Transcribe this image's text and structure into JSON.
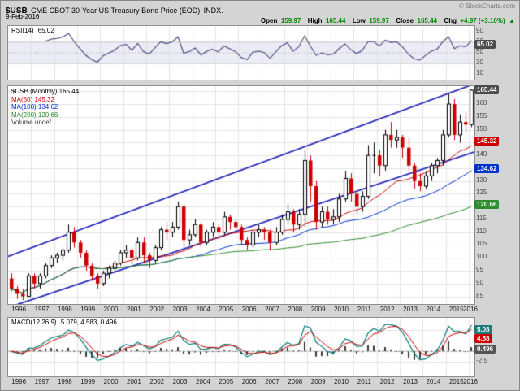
{
  "header": {
    "symbol": "$USB",
    "title": "CME CBOT 30-Year US Treasury Bond Price (EOD)",
    "exchange": "INDX.",
    "date": "9-Feb-2016",
    "copyright": "© StockCharts.com",
    "quote": {
      "open_label": "Open",
      "open": "159.97",
      "high_label": "High",
      "high": "165.44",
      "low_label": "Low",
      "low": "159.97",
      "close_label": "Close",
      "close": "165.44",
      "chg_label": "Chg",
      "chg": "+4.97 (+3.10%)",
      "arrow": "▲"
    }
  },
  "rsi_panel": {
    "name": "RSI(14)",
    "value": "65.02",
    "line_color": "#44447e",
    "band_color": "#ececf6",
    "axis_ticks": [
      90,
      70,
      50,
      30,
      10
    ],
    "value_box": {
      "text": "65.02",
      "bg": "#4d4d4d",
      "value": 65.02
    },
    "range": [
      0,
      100
    ],
    "band": [
      30,
      70
    ],
    "period_quarters": 6
  },
  "main_panel": {
    "legend": [
      {
        "text": "$USB (Monthly) 165.44",
        "color": "#000000"
      },
      {
        "text": "MA(50) 145.32",
        "color": "#cc0000"
      },
      {
        "text": "MA(100) 134.62",
        "color": "#0033cc"
      },
      {
        "text": "MA(200) 120.66",
        "color": "#2e8b2e"
      },
      {
        "text": "Volume undef",
        "color": "#444444"
      }
    ],
    "axis_ticks": [
      165,
      160,
      155,
      150,
      145,
      140,
      135,
      130,
      125,
      120,
      115,
      110,
      105,
      100,
      95,
      90,
      85
    ],
    "value_boxes": [
      {
        "text": "165.44",
        "bg": "#4d4d4d",
        "value": 165.44
      },
      {
        "text": "145.32",
        "bg": "#cc0000",
        "value": 145.32
      },
      {
        "text": "134.62",
        "bg": "#0033cc",
        "value": 134.62
      },
      {
        "text": "120.66",
        "bg": "#2e8b2e",
        "value": 120.66
      }
    ],
    "channel_color": "#2929b8",
    "up_color": "#000000",
    "down_color": "#cc0000"
  },
  "macd_panel": {
    "name": "MACD(12,26,9)",
    "values": "5.079, 4.583, 0.496",
    "axis_ticks": [
      5.0,
      2.5,
      0.0,
      -2.5
    ],
    "value_boxes": [
      {
        "text": "5.08",
        "bg": "#1f7a7a",
        "value": 5.08
      },
      {
        "text": "4.58",
        "bg": "#cc0000",
        "value": 4.58
      },
      {
        "text": "0.496",
        "bg": "#555555",
        "value": 0.496
      }
    ],
    "macd_color": "#007a7a",
    "signal_color": "#cc0000",
    "hist_color": "#3a3a3a"
  },
  "x_axis": {
    "years": [
      "1996",
      "1997",
      "1998",
      "1999",
      "2000",
      "2001",
      "2002",
      "2003",
      "2004",
      "2005",
      "2006",
      "2007",
      "2008",
      "2009",
      "2010",
      "2011",
      "2012",
      "2013",
      "2014",
      "2015",
      "2016"
    ]
  },
  "chart_data": {
    "type": "candlestick",
    "symbol": "$USB",
    "title": "CME CBOT 30-Year US Treasury Bond Price (EOD)",
    "timeframe": "monthly 1996–Feb 2016 (approximated at quarterly resolution)",
    "x_start": "1996-Q1",
    "x_end": "2016-Q1",
    "price_range": [
      82,
      167
    ],
    "ohlc": [
      [
        92,
        94,
        87,
        88
      ],
      [
        88,
        89,
        84,
        86
      ],
      [
        86,
        88,
        83.5,
        85
      ],
      [
        85,
        94,
        85,
        93
      ],
      [
        93,
        94,
        88,
        90
      ],
      [
        90,
        94,
        88,
        93
      ],
      [
        93,
        98,
        92,
        97
      ],
      [
        97,
        101,
        96,
        100
      ],
      [
        100,
        102,
        98,
        101
      ],
      [
        101,
        104,
        99,
        103
      ],
      [
        103,
        113,
        102,
        110
      ],
      [
        110,
        112,
        104,
        106
      ],
      [
        106,
        107,
        100,
        102
      ],
      [
        102,
        103,
        95,
        97
      ],
      [
        97,
        98,
        91,
        93
      ],
      [
        93,
        94,
        88,
        90
      ],
      [
        90,
        95,
        89,
        94
      ],
      [
        94,
        97,
        92,
        96
      ],
      [
        96,
        99,
        94,
        98
      ],
      [
        98,
        103,
        97,
        102
      ],
      [
        102,
        105,
        100,
        103
      ],
      [
        103,
        104,
        97,
        100
      ],
      [
        100,
        108,
        99,
        106
      ],
      [
        106,
        108,
        98,
        101
      ],
      [
        101,
        102,
        96,
        99
      ],
      [
        99,
        105,
        98,
        104
      ],
      [
        104,
        112,
        103,
        111
      ],
      [
        111,
        114,
        107,
        110
      ],
      [
        110,
        114,
        108,
        112
      ],
      [
        112,
        122,
        111,
        120
      ],
      [
        120,
        121,
        104,
        107
      ],
      [
        107,
        111,
        105,
        109
      ],
      [
        109,
        115,
        108,
        113
      ],
      [
        113,
        114,
        104,
        106
      ],
      [
        106,
        111,
        105,
        110
      ],
      [
        110,
        114,
        108,
        112
      ],
      [
        112,
        113,
        107,
        110
      ],
      [
        110,
        118,
        109,
        116
      ],
      [
        116,
        117,
        111,
        114
      ],
      [
        114,
        115,
        110,
        112
      ],
      [
        112,
        113,
        105,
        107
      ],
      [
        107,
        108,
        103,
        105
      ],
      [
        105,
        111,
        104,
        110
      ],
      [
        110,
        113,
        108,
        111
      ],
      [
        111,
        112,
        107,
        110
      ],
      [
        110,
        111,
        103,
        106
      ],
      [
        106,
        112,
        105,
        110
      ],
      [
        110,
        117,
        109,
        115
      ],
      [
        115,
        121,
        113,
        118
      ],
      [
        118,
        119,
        110,
        113
      ],
      [
        113,
        119,
        111,
        117
      ],
      [
        117,
        142,
        112,
        138
      ],
      [
        138,
        140,
        122,
        128
      ],
      [
        128,
        130,
        111,
        114
      ],
      [
        114,
        120,
        112,
        118
      ],
      [
        118,
        120,
        113,
        115
      ],
      [
        115,
        119,
        113,
        116
      ],
      [
        116,
        125,
        114,
        123
      ],
      [
        123,
        134,
        122,
        131
      ],
      [
        131,
        133,
        122,
        125
      ],
      [
        125,
        126,
        117,
        120
      ],
      [
        120,
        126,
        118,
        124
      ],
      [
        124,
        144,
        123,
        140
      ],
      [
        140,
        145,
        133,
        140
      ],
      [
        140,
        142,
        132,
        136
      ],
      [
        136,
        150,
        134,
        148
      ],
      [
        148,
        153,
        143,
        146
      ],
      [
        146,
        150,
        143,
        147
      ],
      [
        147,
        148,
        139,
        143
      ],
      [
        143,
        147,
        134,
        136
      ],
      [
        136,
        137,
        127,
        130
      ],
      [
        130,
        133,
        126,
        128
      ],
      [
        128,
        134,
        127,
        132
      ],
      [
        132,
        137,
        130,
        136
      ],
      [
        136,
        139,
        133,
        138
      ],
      [
        138,
        150,
        136,
        148
      ],
      [
        148,
        164,
        147,
        160
      ],
      [
        160,
        162,
        146,
        148
      ],
      [
        148,
        156,
        145,
        153
      ],
      [
        153,
        157,
        149,
        152
      ],
      [
        152,
        165.8,
        151,
        165.44
      ]
    ],
    "mas": [
      {
        "label": "MA(50)",
        "window_q": 17,
        "color": "#cc0000",
        "last": 145.32
      },
      {
        "label": "MA(100)",
        "window_q": 33,
        "color": "#0033cc",
        "last": 134.62
      },
      {
        "label": "MA(200)",
        "window_q": 67,
        "color": "#2e8b2e",
        "last": 120.66
      }
    ],
    "trend_channel": {
      "lower": [
        81,
        141
      ],
      "upper": [
        101,
        167.5
      ]
    },
    "rsi_last": 65.02,
    "macd_last": [
      5.079,
      4.583,
      0.496
    ],
    "macd_params_q": [
      4,
      9,
      3
    ],
    "rsi_range": [
      0,
      100
    ],
    "macd_range": [
      -6,
      8
    ]
  }
}
